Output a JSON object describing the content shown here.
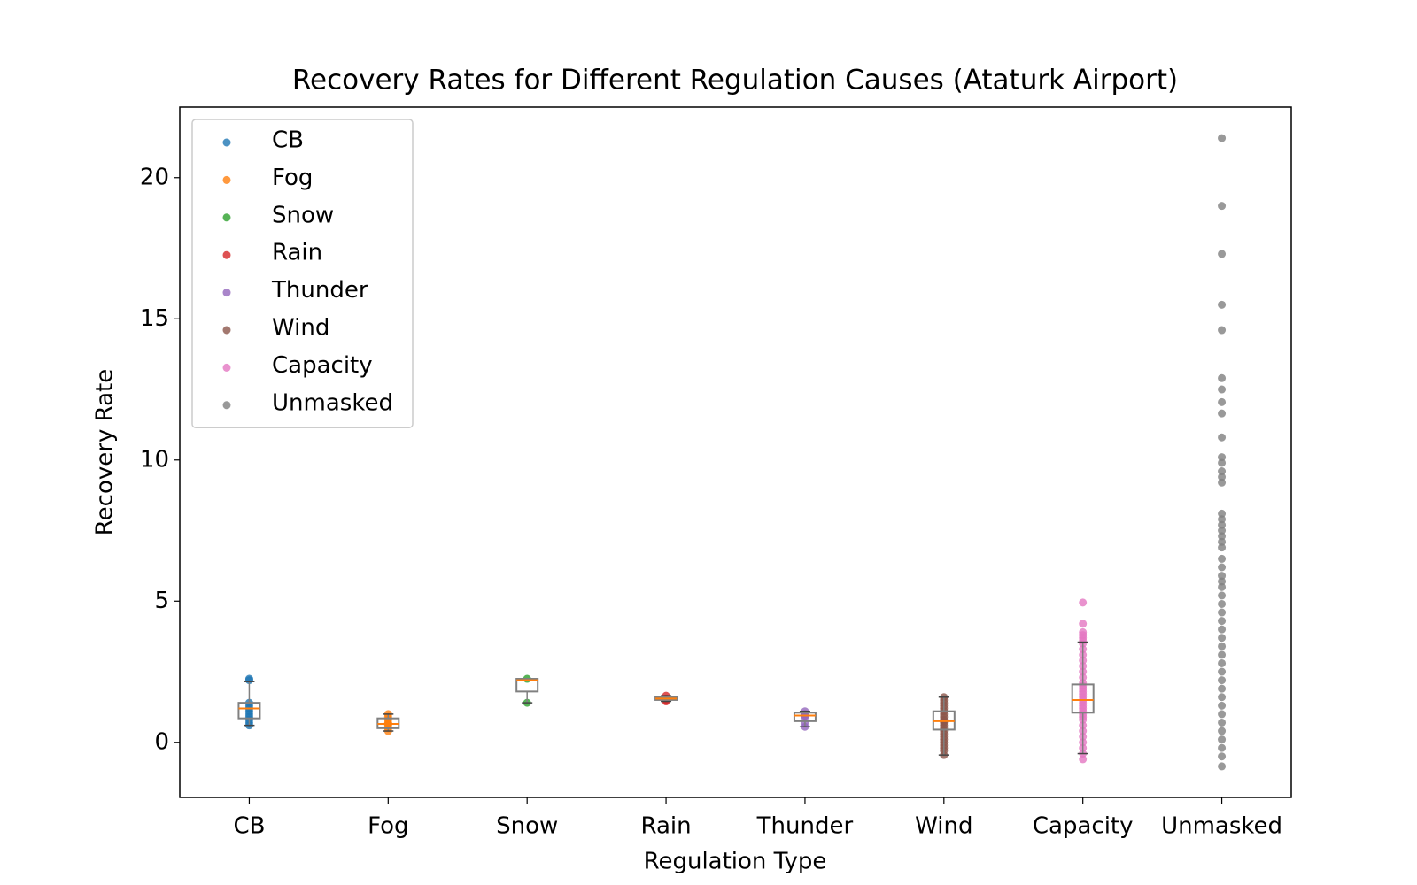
{
  "chart_data": {
    "type": "strip_box",
    "title": "Recovery Rates for Different Regulation Causes (Ataturk Airport)",
    "x_label": "Regulation Type",
    "y_label": "Recovery Rate",
    "categories": [
      "CB",
      "Fog",
      "Snow",
      "Rain",
      "Thunder",
      "Wind",
      "Capacity",
      "Unmasked"
    ],
    "ylim": [
      -1.95,
      22.5
    ],
    "yticks": [
      0,
      5,
      10,
      15,
      20
    ],
    "legend": "upper left",
    "box_color": "#808080",
    "median_color": "#ff7f0e",
    "series": [
      {
        "name": "CB",
        "color": "#1f77b4",
        "values": [
          2.25,
          2.2,
          1.4,
          1.3,
          1.2,
          1.1,
          1.0,
          0.9,
          0.8,
          0.7,
          0.6
        ],
        "box": {
          "whislo": 0.6,
          "q1": 0.85,
          "med": 1.2,
          "q3": 1.4,
          "whishi": 2.15
        }
      },
      {
        "name": "Fog",
        "color": "#ff7f0e",
        "values": [
          1.0,
          0.9,
          0.8,
          0.7,
          0.65,
          0.6,
          0.5,
          0.4
        ],
        "box": {
          "whislo": 0.4,
          "q1": 0.5,
          "med": 0.65,
          "q3": 0.85,
          "whishi": 1.0
        }
      },
      {
        "name": "Snow",
        "color": "#2ca02c",
        "values": [
          2.25,
          1.4
        ],
        "box": {
          "whislo": 1.4,
          "q1": 1.8,
          "med": 2.2,
          "q3": 2.25,
          "whishi": 2.25
        }
      },
      {
        "name": "Rain",
        "color": "#d62728",
        "values": [
          1.65,
          1.55,
          1.5,
          1.45
        ],
        "box": {
          "whislo": 1.45,
          "q1": 1.5,
          "med": 1.55,
          "q3": 1.6,
          "whishi": 1.65
        }
      },
      {
        "name": "Thunder",
        "color": "#9467bd",
        "values": [
          1.1,
          1.0,
          0.95,
          0.9,
          0.7,
          0.55
        ],
        "box": {
          "whislo": 0.55,
          "q1": 0.75,
          "med": 0.95,
          "q3": 1.05,
          "whishi": 1.1
        }
      },
      {
        "name": "Wind",
        "color": "#8c564b",
        "values": [
          1.6,
          1.5,
          1.4,
          1.3,
          1.2,
          1.1,
          1.0,
          0.9,
          0.8,
          0.75,
          0.7,
          0.6,
          0.5,
          0.4,
          0.3,
          0.2,
          0.1,
          0.0,
          -0.1,
          -0.2,
          -0.3,
          -0.45
        ],
        "box": {
          "whislo": -0.45,
          "q1": 0.45,
          "med": 0.75,
          "q3": 1.1,
          "whishi": 1.6
        }
      },
      {
        "name": "Capacity",
        "color": "#e377c2",
        "values": [
          4.95,
          4.2,
          3.9,
          3.8,
          3.7,
          3.6,
          3.5,
          3.3,
          3.1,
          2.9,
          2.7,
          2.5,
          2.3,
          2.1,
          2.0,
          1.9,
          1.8,
          1.7,
          1.6,
          1.5,
          1.4,
          1.3,
          1.2,
          1.1,
          1.0,
          0.9,
          0.8,
          0.6,
          0.4,
          0.2,
          0.0,
          -0.2,
          -0.4,
          -0.6
        ],
        "box": {
          "whislo": -0.4,
          "q1": 1.05,
          "med": 1.5,
          "q3": 2.05,
          "whishi": 3.55
        }
      },
      {
        "name": "Unmasked",
        "color": "#7f7f7f",
        "values": [
          21.4,
          19.0,
          17.3,
          15.5,
          14.6,
          12.9,
          12.5,
          12.05,
          11.65,
          10.8,
          10.1,
          9.9,
          9.6,
          9.4,
          9.2,
          8.1,
          7.9,
          7.7,
          7.5,
          7.3,
          7.1,
          6.9,
          6.5,
          6.2,
          5.9,
          5.7,
          5.5,
          5.2,
          4.9,
          4.6,
          4.3,
          4.0,
          3.7,
          3.4,
          3.1,
          2.8,
          2.5,
          2.2,
          1.9,
          1.6,
          1.3,
          1.0,
          0.7,
          0.4,
          0.1,
          -0.2,
          -0.5,
          -0.85
        ]
      }
    ]
  }
}
